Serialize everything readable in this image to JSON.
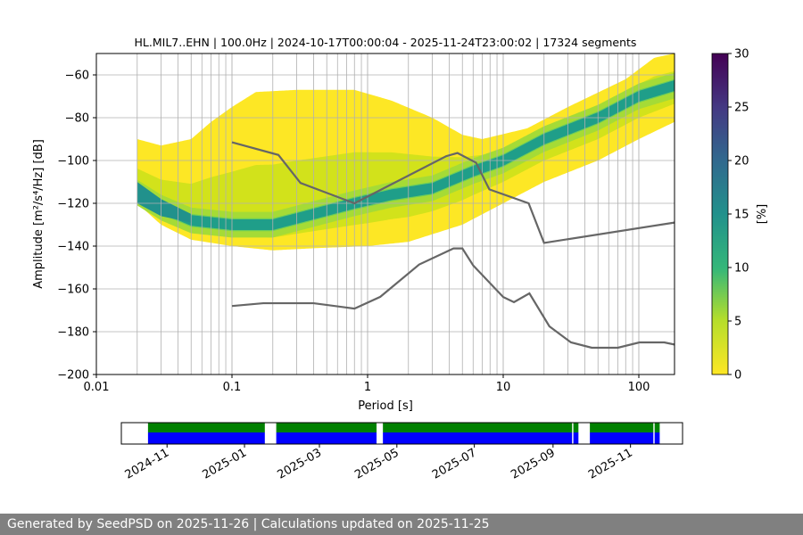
{
  "chart_data": {
    "type": "heatmap",
    "title": "HL.MIL7..EHN | 100.0Hz | 2024-10-17T00:00:04 - 2025-11-24T23:00:02 | 17324 segments",
    "xlabel": "Period [s]",
    "ylabel": "Amplitude [m²/s⁴/Hz] [dB]",
    "x_scale": "log",
    "xlim": [
      0.01,
      183
    ],
    "ylim": [
      -200,
      -50
    ],
    "grid": true,
    "x_ticks": [
      "0.01",
      "0.1",
      "1",
      "10",
      "100"
    ],
    "y_ticks": [
      "−60",
      "−80",
      "−100",
      "−120",
      "−140",
      "−160",
      "−180",
      "−200"
    ],
    "colorbar": {
      "label": "[%]",
      "range": [
        0,
        30
      ],
      "ticks": [
        "0",
        "5",
        "10",
        "15",
        "20",
        "25",
        "30"
      ],
      "colormap": "viridis_r"
    },
    "density": {
      "envelope_top": [
        [
          0.02,
          -90
        ],
        [
          0.03,
          -93
        ],
        [
          0.05,
          -90
        ],
        [
          0.07,
          -82
        ],
        [
          0.1,
          -75
        ],
        [
          0.15,
          -68
        ],
        [
          0.3,
          -67
        ],
        [
          0.8,
          -67
        ],
        [
          1.5,
          -72
        ],
        [
          3,
          -80
        ],
        [
          5,
          -88
        ],
        [
          7,
          -90
        ],
        [
          15,
          -85
        ],
        [
          30,
          -75
        ],
        [
          80,
          -62
        ],
        [
          130,
          -52
        ],
        [
          183,
          -50
        ]
      ],
      "envelope_bottom": [
        [
          0.02,
          -120
        ],
        [
          0.03,
          -130
        ],
        [
          0.05,
          -137
        ],
        [
          0.1,
          -140
        ],
        [
          0.2,
          -142
        ],
        [
          0.4,
          -141
        ],
        [
          1,
          -140
        ],
        [
          2,
          -138
        ],
        [
          5,
          -130
        ],
        [
          10,
          -120
        ],
        [
          20,
          -110
        ],
        [
          50,
          -100
        ],
        [
          100,
          -90
        ],
        [
          183,
          -82
        ]
      ],
      "mode": [
        [
          0.02,
          -115
        ],
        [
          0.03,
          -122
        ],
        [
          0.05,
          -128
        ],
        [
          0.1,
          -130
        ],
        [
          0.2,
          -130
        ],
        [
          0.4,
          -125
        ],
        [
          0.8,
          -120
        ],
        [
          1.5,
          -116
        ],
        [
          3,
          -113
        ],
        [
          6,
          -105
        ],
        [
          10,
          -100
        ],
        [
          20,
          -90
        ],
        [
          50,
          -80
        ],
        [
          100,
          -70
        ],
        [
          183,
          -65
        ]
      ]
    },
    "series": [
      {
        "period": [
          0.1,
          0.22,
          0.32,
          0.8,
          3.8,
          4.6,
          6.3,
          7.9,
          15.4,
          20,
          183
        ],
        "db": [
          -91.5,
          -97.4,
          -110.5,
          -120,
          -98,
          -96.5,
          -101,
          -113.5,
          -120,
          -138.5,
          -129
        ]
      },
      {
        "period": [
          0.1,
          0.17,
          0.4,
          0.8,
          1.24,
          2.4,
          4.3,
          5,
          6,
          10,
          12,
          15.6,
          21.9,
          31.6,
          45,
          70,
          101,
          154,
          183
        ],
        "db": [
          -168,
          -166.7,
          -166.7,
          -169.2,
          -163.7,
          -148.6,
          -141.1,
          -141.1,
          -149,
          -163.8,
          -166.2,
          -162.1,
          -177.5,
          -185,
          -187.5,
          -187.5,
          -185,
          -185,
          -186
        ]
      }
    ],
    "colors": {
      "noise_model": "#666666",
      "grid": "#b0b0b0",
      "availability_top": "#008000",
      "availability_bottom": "#0000ff"
    }
  },
  "availability": {
    "range": [
      "2024-09-26",
      "2025-12-12"
    ],
    "data_start": "2024-10-17",
    "data_end": "2025-11-24",
    "gaps": [
      [
        "2025-01-17",
        "2025-01-26"
      ],
      [
        "2025-04-15",
        "2025-04-20"
      ],
      [
        "2025-09-21",
        "2025-09-30"
      ],
      [
        "2025-09-16",
        "2025-09-17"
      ],
      [
        "2025-11-19",
        "2025-11-20"
      ]
    ],
    "x_ticks": [
      "2024-11",
      "2025-01",
      "2025-03",
      "2025-05",
      "2025-07",
      "2025-09",
      "2025-11"
    ]
  },
  "footer": {
    "text": "Generated by SeedPSD on 2025-11-26 | Calculations updated on 2025-11-25"
  }
}
